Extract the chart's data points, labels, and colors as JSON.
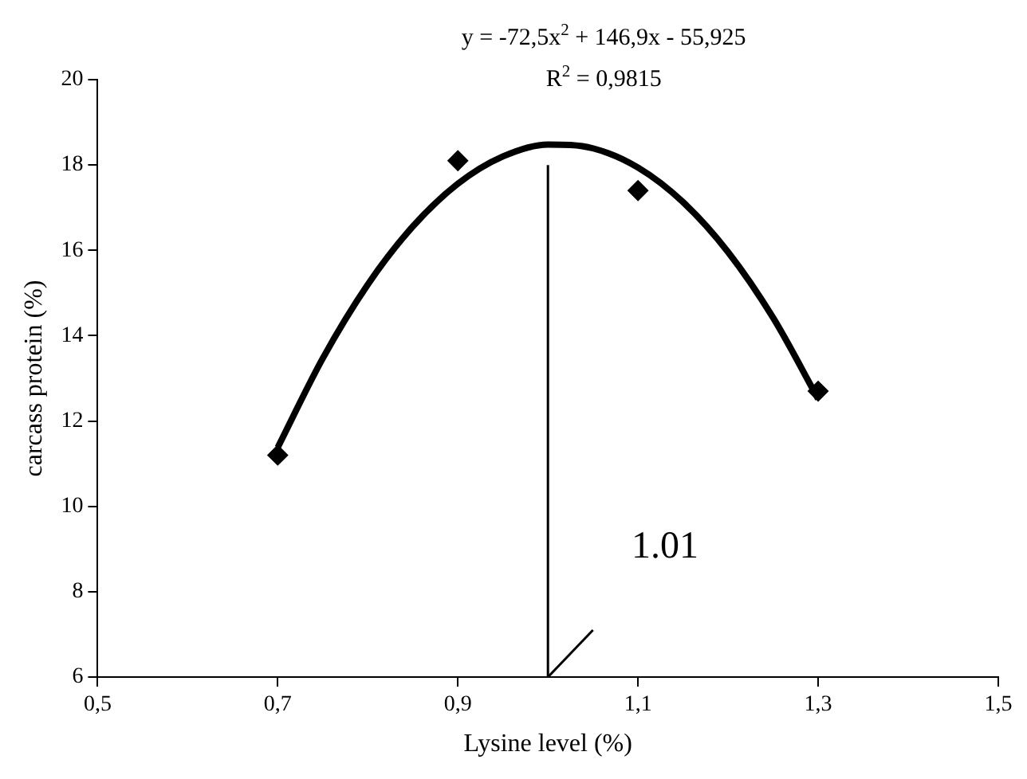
{
  "chart_data": {
    "type": "scatter",
    "xlabel": "Lysine level (%)",
    "ylabel": "carcass protein (%)",
    "xlim": [
      0.5,
      1.5
    ],
    "xticks": [
      {
        "value": 0.5,
        "label": "0,5"
      },
      {
        "value": 0.7,
        "label": "0,7"
      },
      {
        "value": 0.9,
        "label": "0,9"
      },
      {
        "value": 1.1,
        "label": "1,1"
      },
      {
        "value": 1.3,
        "label": "1,3"
      },
      {
        "value": 1.5,
        "label": "1,5"
      }
    ],
    "ylim": [
      6,
      20
    ],
    "yticks": [
      6,
      8,
      10,
      12,
      14,
      16,
      18,
      20
    ],
    "grid": false,
    "series": [
      {
        "type": "scatter",
        "marker": "diamond",
        "color": "#000000",
        "x": [
          0.7,
          0.9,
          1.1,
          1.3
        ],
        "values": [
          11.2,
          18.1,
          17.4,
          12.7
        ]
      },
      {
        "type": "line",
        "color": "#000000",
        "x": [
          0.7,
          0.75,
          0.8,
          0.85,
          0.9,
          0.95,
          1.0,
          1.05,
          1.1,
          1.15,
          1.2,
          1.25,
          1.3
        ],
        "values": [
          11.38,
          13.47,
          15.2,
          16.56,
          17.56,
          18.2,
          18.48,
          18.39,
          17.94,
          17.13,
          15.96,
          14.42,
          12.52
        ]
      },
      {
        "type": "line",
        "color": "#000000",
        "x": [
          1.0,
          1.0
        ],
        "values": [
          6,
          18
        ]
      },
      {
        "type": "line",
        "color": "#000000",
        "x": [
          1.0,
          1.05
        ],
        "values": [
          6,
          7.1
        ]
      }
    ],
    "annotations": [
      "y = -72,5x$^{2}$ + 146,9x - 55,925",
      "R$^{2}$ = 0,9815",
      "1.01"
    ]
  }
}
